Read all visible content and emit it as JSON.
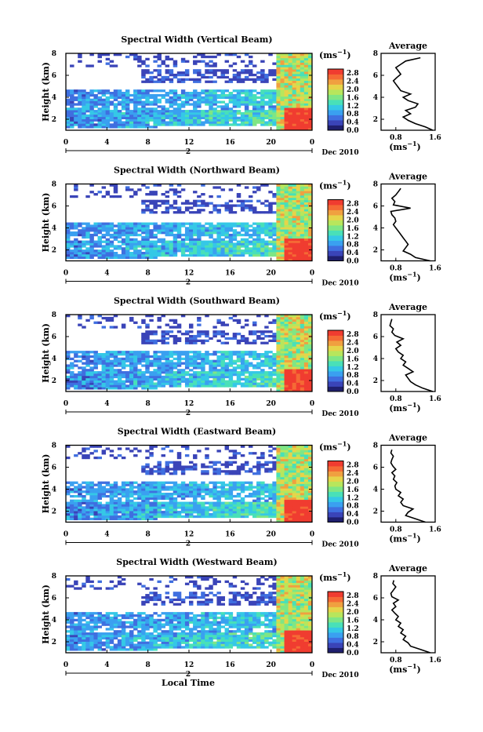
{
  "figure": {
    "date_label": "Dec 2010",
    "xlabel": "Local Time",
    "day_marker": "2",
    "units_label": "(ms",
    "units_exp": "−1",
    "avg_title": "Average",
    "colors": {
      "scale": [
        "#1f1f6e",
        "#3a44b8",
        "#3f6fe0",
        "#3aa0f0",
        "#35c8e6",
        "#49e0b8",
        "#7fe685",
        "#b8e65c",
        "#e6d44a",
        "#f0a040",
        "#f56a35",
        "#f03c30"
      ]
    }
  },
  "chart_data": [
    {
      "type": "heatmap",
      "title": "Spectral Width (Vertical Beam)",
      "ylabel": "Height (km)",
      "x_ticks": [
        "0",
        "4",
        "8",
        "12",
        "16",
        "20",
        "0"
      ],
      "xlim": [
        0,
        24
      ],
      "y_ticks": [
        "2",
        "4",
        "6",
        "8"
      ],
      "ylim": [
        1,
        8
      ],
      "colorbar_ticks": [
        "0.0",
        "0.4",
        "0.8",
        "1.2",
        "1.6",
        "2.0",
        "2.4",
        "2.8"
      ],
      "colorbar_range": [
        0,
        3.0
      ],
      "average_profile": {
        "xlabel": "(ms",
        "x_ticks": [
          "0.8",
          "1.6"
        ],
        "xlim": [
          0.5,
          1.6
        ],
        "x": [
          1.55,
          1.4,
          1.2,
          1.05,
          0.95,
          1.1,
          1.0,
          1.2,
          1.25,
          1.05,
          0.95,
          1.1,
          0.9,
          0.85,
          0.8,
          0.75,
          0.82,
          0.9,
          0.85,
          0.8,
          0.9,
          1.0,
          1.3
        ],
        "y": [
          1.0,
          1.3,
          1.6,
          1.9,
          2.2,
          2.5,
          2.8,
          3.1,
          3.4,
          3.7,
          4.0,
          4.3,
          4.6,
          4.9,
          5.2,
          5.5,
          5.8,
          6.1,
          6.4,
          6.7,
          7.0,
          7.3,
          7.6
        ]
      }
    },
    {
      "type": "heatmap",
      "title": "Spectral Width (Northward Beam)",
      "ylabel": "Height (km)",
      "x_ticks": [
        "0",
        "4",
        "8",
        "12",
        "16",
        "20",
        "0"
      ],
      "xlim": [
        0,
        24
      ],
      "y_ticks": [
        "2",
        "4",
        "6",
        "8"
      ],
      "ylim": [
        1,
        8
      ],
      "colorbar_ticks": [
        "0.0",
        "0.4",
        "0.8",
        "1.2",
        "1.6",
        "2.0",
        "2.4",
        "2.8"
      ],
      "colorbar_range": [
        0,
        3.0
      ],
      "average_profile": {
        "xlabel": "(ms",
        "x_ticks": [
          "0.8",
          "1.6"
        ],
        "xlim": [
          0.5,
          1.6
        ],
        "x": [
          1.5,
          1.2,
          1.1,
          0.95,
          1.0,
          1.05,
          1.0,
          0.95,
          0.9,
          0.85,
          0.8,
          0.75,
          0.8,
          0.78,
          0.72,
          0.7,
          1.1,
          0.75,
          0.78,
          0.72,
          0.8,
          0.85,
          0.9
        ],
        "y": [
          1.0,
          1.3,
          1.6,
          1.9,
          2.2,
          2.5,
          2.8,
          3.1,
          3.4,
          3.7,
          4.0,
          4.3,
          4.6,
          4.9,
          5.2,
          5.5,
          5.8,
          6.1,
          6.4,
          6.7,
          7.0,
          7.3,
          7.6
        ]
      }
    },
    {
      "type": "heatmap",
      "title": "Spectral Width (Southward Beam)",
      "ylabel": "Height (km)",
      "x_ticks": [
        "0",
        "4",
        "8",
        "12",
        "16",
        "20",
        "0"
      ],
      "xlim": [
        0,
        24
      ],
      "y_ticks": [
        "2",
        "4",
        "6",
        "8"
      ],
      "ylim": [
        1,
        8
      ],
      "colorbar_ticks": [
        "0.0",
        "0.4",
        "0.8",
        "1.2",
        "1.6",
        "2.0",
        "2.4",
        "2.8"
      ],
      "colorbar_range": [
        0,
        3.0
      ],
      "average_profile": {
        "xlabel": "(ms",
        "x_ticks": [
          "0.8",
          "1.6"
        ],
        "xlim": [
          0.5,
          1.6
        ],
        "x": [
          1.55,
          1.35,
          1.2,
          1.1,
          1.05,
          1.0,
          1.15,
          1.05,
          0.95,
          1.0,
          0.9,
          0.95,
          0.85,
          0.8,
          0.9,
          0.82,
          0.95,
          0.78,
          0.72,
          0.75,
          0.68,
          0.7,
          0.72
        ],
        "y": [
          1.0,
          1.3,
          1.6,
          1.9,
          2.2,
          2.5,
          2.8,
          3.1,
          3.4,
          3.7,
          4.0,
          4.3,
          4.6,
          4.9,
          5.2,
          5.5,
          5.8,
          6.1,
          6.4,
          6.7,
          7.0,
          7.3,
          7.6
        ]
      }
    },
    {
      "type": "heatmap",
      "title": "Spectral Width (Eastward Beam)",
      "ylabel": "Height (km)",
      "x_ticks": [
        "0",
        "4",
        "8",
        "12",
        "16",
        "20",
        "0"
      ],
      "xlim": [
        0,
        24
      ],
      "y_ticks": [
        "2",
        "4",
        "6",
        "8"
      ],
      "ylim": [
        1,
        8
      ],
      "colorbar_ticks": [
        "0.0",
        "0.4",
        "0.8",
        "1.2",
        "1.6",
        "2.0",
        "2.4",
        "2.8"
      ],
      "colorbar_range": [
        0,
        3.0
      ],
      "average_profile": {
        "xlabel": "(ms",
        "x_ticks": [
          "0.8",
          "1.6"
        ],
        "xlim": [
          0.5,
          1.6
        ],
        "x": [
          1.4,
          1.2,
          1.0,
          1.05,
          1.15,
          0.95,
          0.9,
          0.95,
          0.85,
          0.9,
          0.8,
          0.78,
          0.82,
          0.75,
          0.78,
          0.72,
          0.8,
          0.74,
          0.7,
          0.72,
          0.75,
          0.7,
          0.72
        ],
        "y": [
          1.0,
          1.3,
          1.6,
          1.9,
          2.2,
          2.5,
          2.8,
          3.1,
          3.4,
          3.7,
          4.0,
          4.3,
          4.6,
          4.9,
          5.2,
          5.5,
          5.8,
          6.1,
          6.4,
          6.7,
          7.0,
          7.3,
          7.6
        ]
      }
    },
    {
      "type": "heatmap",
      "title": "Spectral Width (Westward Beam)",
      "ylabel": "Height (km)",
      "x_ticks": [
        "0",
        "4",
        "8",
        "12",
        "16",
        "20",
        "0"
      ],
      "xlim": [
        0,
        24
      ],
      "y_ticks": [
        "2",
        "4",
        "6",
        "8"
      ],
      "ylim": [
        1,
        8
      ],
      "colorbar_ticks": [
        "0.0",
        "0.4",
        "0.8",
        "1.2",
        "1.6",
        "2.0",
        "2.4",
        "2.8"
      ],
      "colorbar_range": [
        0,
        3.0
      ],
      "average_profile": {
        "xlabel": "(ms",
        "x_ticks": [
          "0.8",
          "1.6"
        ],
        "xlim": [
          0.5,
          1.6
        ],
        "x": [
          1.5,
          1.3,
          1.1,
          1.05,
          0.95,
          1.0,
          0.9,
          0.95,
          0.85,
          0.9,
          0.8,
          0.85,
          0.78,
          0.72,
          0.8,
          0.75,
          0.85,
          0.72,
          0.7,
          0.75,
          0.8,
          0.74,
          0.76
        ],
        "y": [
          1.0,
          1.3,
          1.6,
          1.9,
          2.2,
          2.5,
          2.8,
          3.1,
          3.4,
          3.7,
          4.0,
          4.3,
          4.6,
          4.9,
          5.2,
          5.5,
          5.8,
          6.1,
          6.4,
          6.7,
          7.0,
          7.3,
          7.6
        ]
      }
    }
  ]
}
